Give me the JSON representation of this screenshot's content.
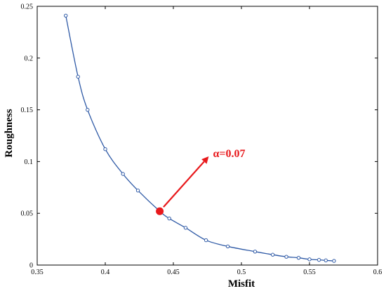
{
  "chart_data": {
    "type": "line",
    "xlabel": "Misfit",
    "ylabel": "Roughness",
    "xlim": [
      0.35,
      0.6
    ],
    "ylim": [
      0,
      0.25
    ],
    "xticks": [
      "0.35",
      "0.4",
      "0.45",
      "0.5",
      "0.55",
      "0.6"
    ],
    "yticks": [
      "0",
      "0.05",
      "0.1",
      "0.15",
      "0.2",
      "0.25"
    ],
    "grid": false,
    "series": [
      {
        "color": "#2f5aa6",
        "marker": "circle",
        "x": [
          0.371,
          0.38,
          0.387,
          0.4,
          0.413,
          0.424,
          0.44,
          0.447,
          0.459,
          0.474,
          0.49,
          0.51,
          0.523,
          0.533,
          0.542,
          0.55,
          0.557,
          0.562,
          0.568
        ],
        "y": [
          0.241,
          0.182,
          0.15,
          0.112,
          0.088,
          0.072,
          0.052,
          0.045,
          0.036,
          0.024,
          0.018,
          0.013,
          0.01,
          0.008,
          0.007,
          0.0055,
          0.005,
          0.0045,
          0.004
        ]
      }
    ],
    "highlight": {
      "x": 0.44,
      "y": 0.052,
      "color": "#e8191c"
    },
    "annotation": {
      "text": "α=0.07",
      "x": 0.476,
      "y": 0.105,
      "color": "#e8191c"
    }
  }
}
